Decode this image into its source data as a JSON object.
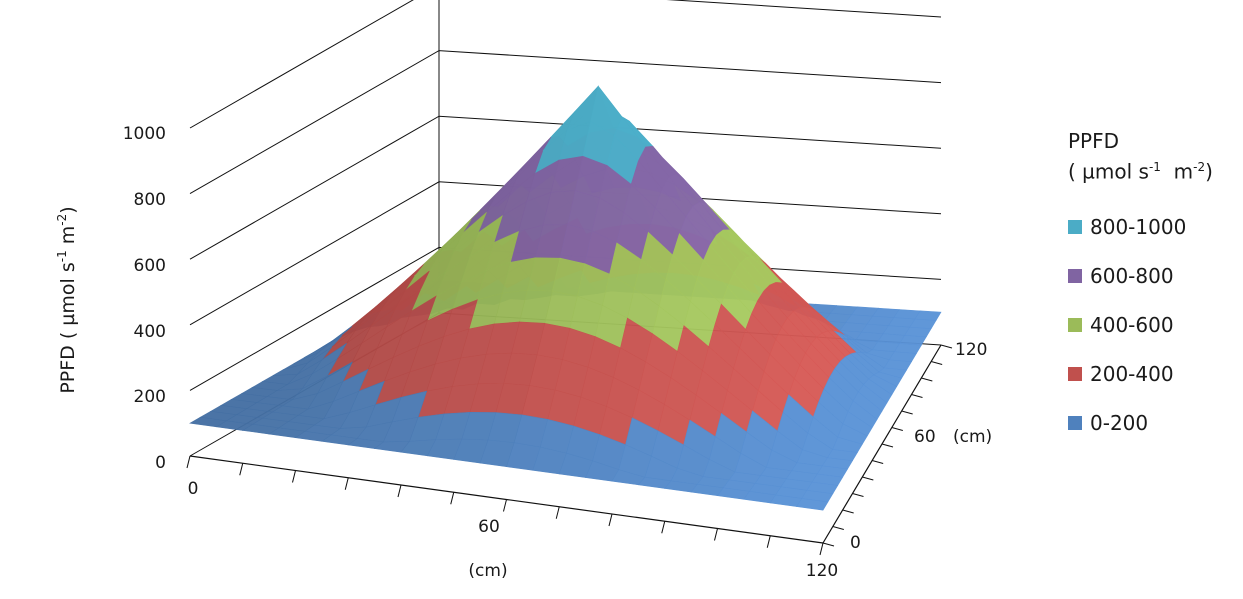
{
  "chart_data": {
    "type": "3d-surface",
    "title": "",
    "zlabel_main": "PPFD ( µmol s",
    "zlabel_sup1": "-1",
    "zlabel_mid": "  m",
    "zlabel_sup2": "-2",
    "zlabel_end": ")",
    "z_ticks": [
      "0",
      "200",
      "400",
      "600",
      "800",
      "1000"
    ],
    "zlim": [
      0,
      1000
    ],
    "x_ticks": [
      "0",
      "60",
      "120"
    ],
    "x_unit": "(cm)",
    "y_ticks": [
      "0",
      "60",
      "120"
    ],
    "y_unit": "(cm)",
    "xlim": [
      0,
      120
    ],
    "ylim": [
      0,
      120
    ],
    "peak": {
      "x": 60,
      "y": 60,
      "value": 1000
    },
    "edge_value": 100,
    "legend": {
      "title_line1": "PPFD",
      "title_line2_a": "( µmol s",
      "title_line2_sup1": "-1",
      "title_line2_b": "  m",
      "title_line2_sup2": "-2",
      "title_line2_c": ")",
      "items": [
        {
          "label": "800-1000",
          "color": "#4bacc6"
        },
        {
          "label": "600-800",
          "color": "#8064a2"
        },
        {
          "label": "400-600",
          "color": "#9bbb59"
        },
        {
          "label": "200-400",
          "color": "#c0504d"
        },
        {
          "label": "0-200",
          "color": "#4f81bd"
        }
      ]
    }
  }
}
